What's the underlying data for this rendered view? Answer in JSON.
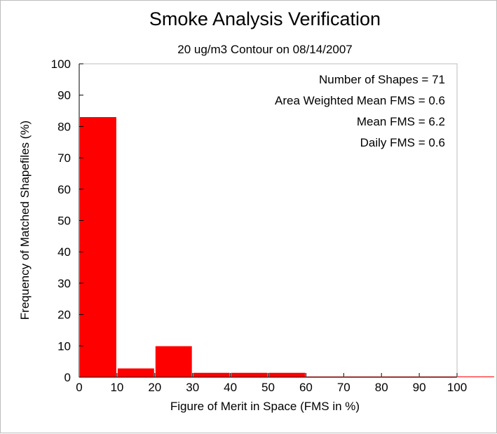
{
  "chart_data": {
    "type": "bar",
    "title": "Smoke Analysis Verification",
    "subtitle": "20 ug/m3 Contour on 08/14/2007",
    "xlabel": "Figure of Merit in Space (FMS in %)",
    "ylabel": "Frequency of Matched Shapefiles (%)",
    "xlim": [
      0,
      100
    ],
    "ylim": [
      0,
      100
    ],
    "xticks": [
      "0",
      "10",
      "20",
      "30",
      "40",
      "50",
      "60",
      "70",
      "80",
      "90",
      "100"
    ],
    "yticks": [
      "0",
      "10",
      "20",
      "30",
      "40",
      "50",
      "60",
      "70",
      "80",
      "90",
      "100"
    ],
    "bins": [
      [
        0,
        10
      ],
      [
        10,
        20
      ],
      [
        20,
        30
      ],
      [
        30,
        40
      ],
      [
        40,
        50
      ],
      [
        50,
        60
      ],
      [
        60,
        70
      ],
      [
        70,
        80
      ],
      [
        80,
        90
      ],
      [
        90,
        100
      ],
      [
        100,
        110
      ]
    ],
    "values": [
      83,
      2.8,
      9.9,
      1.4,
      1.4,
      1.4,
      0,
      0,
      0,
      0,
      0
    ],
    "bar_color": "#ff0000",
    "grid": false,
    "annotations": [
      "Number of Shapes = 71",
      "Area Weighted Mean FMS = 0.6",
      "Mean FMS = 6.2",
      "Daily FMS = 0.6"
    ]
  }
}
